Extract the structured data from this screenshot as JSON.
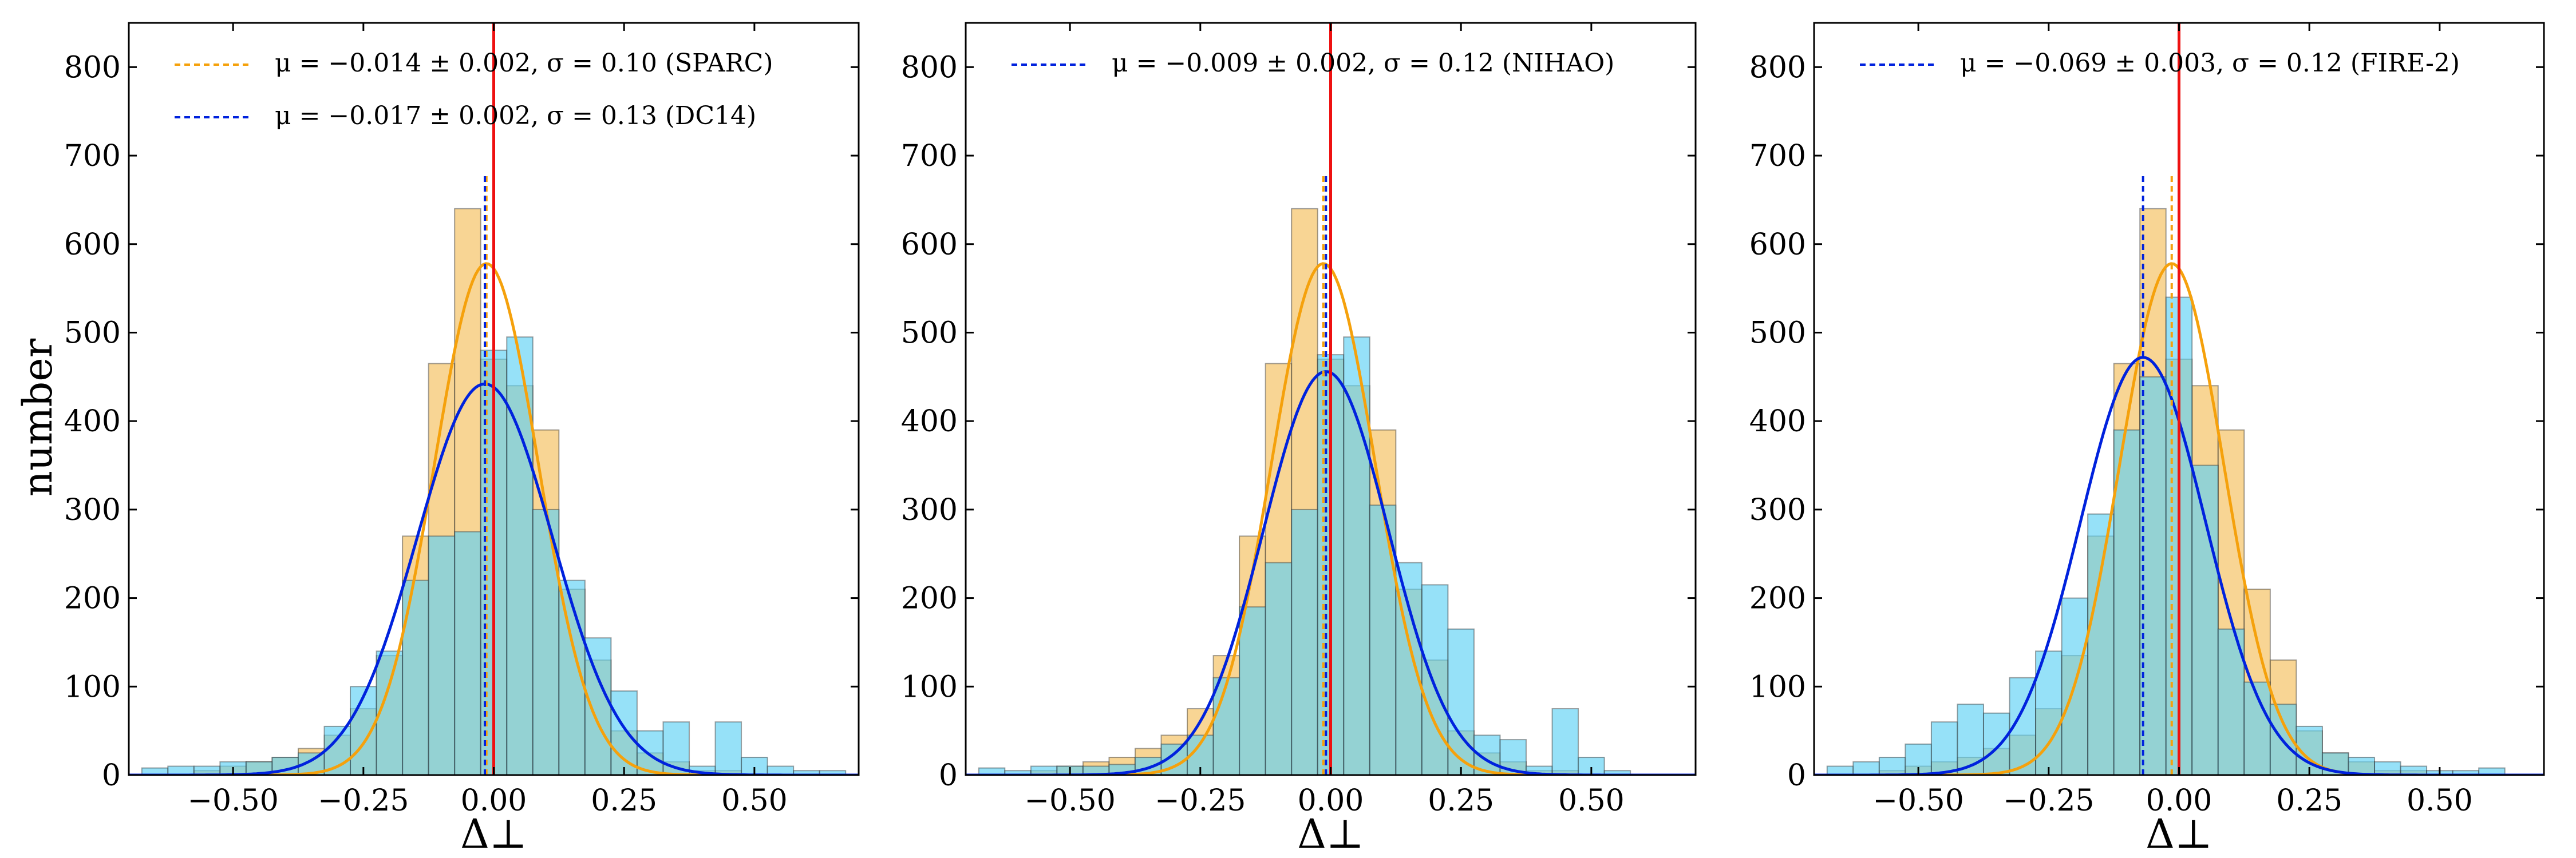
{
  "colors": {
    "sparc_fill": "#f5be5b",
    "sim_fill": "#5ed1f5",
    "overlap_fill": "#8fc7a9",
    "sparc_line": "#f5a10c",
    "sim_line": "#0022dd",
    "zero_line": "#ee1111",
    "edge": "#333333"
  },
  "chart_data": [
    {
      "type": "bar",
      "ylabel": "number",
      "xlabel": "Δ⊥",
      "xlim": [
        -0.7,
        0.7
      ],
      "ylim": [
        0,
        850
      ],
      "xticks": [
        "−0.50",
        "−0.25",
        "0.00",
        "0.25",
        "0.50"
      ],
      "yticks": [
        "0",
        "100",
        "200",
        "300",
        "400",
        "500",
        "600",
        "700",
        "800"
      ],
      "legend": [
        {
          "text": "μ = −0.014 ± 0.002, σ = 0.10 (SPARC)",
          "color": "#f5a10c"
        },
        {
          "text": "μ = −0.017 ± 0.002, σ = 0.13 (DC14)",
          "color": "#0022dd"
        }
      ],
      "bin_edges": [
        -0.675,
        -0.625,
        -0.575,
        -0.525,
        -0.475,
        -0.425,
        -0.375,
        -0.325,
        -0.275,
        -0.225,
        -0.175,
        -0.125,
        -0.075,
        -0.025,
        0.025,
        0.075,
        0.125,
        0.175,
        0.225,
        0.275,
        0.325,
        0.375,
        0.425,
        0.475,
        0.525,
        0.575,
        0.625,
        0.675
      ],
      "sparc_counts": [
        0,
        0,
        5,
        10,
        15,
        20,
        30,
        45,
        75,
        135,
        270,
        465,
        640,
        470,
        440,
        390,
        210,
        130,
        50,
        25,
        15,
        5,
        5,
        0,
        0,
        0,
        0
      ],
      "sim_counts": [
        8,
        10,
        10,
        15,
        15,
        20,
        25,
        55,
        100,
        140,
        220,
        270,
        275,
        480,
        495,
        300,
        220,
        155,
        95,
        50,
        60,
        10,
        60,
        20,
        10,
        5,
        5
      ],
      "sparc_fit": {
        "mu": -0.014,
        "sigma": 0.1,
        "peak": 578
      },
      "sim_fit": {
        "mu": -0.017,
        "sigma": 0.13,
        "peak": 442
      },
      "sim_mean_line": -0.017
    },
    {
      "type": "bar",
      "xlabel": "Δ⊥",
      "xlim": [
        -0.7,
        0.7
      ],
      "ylim": [
        0,
        850
      ],
      "xticks": [
        "−0.50",
        "−0.25",
        "0.00",
        "0.25",
        "0.50"
      ],
      "yticks": [
        "0",
        "100",
        "200",
        "300",
        "400",
        "500",
        "600",
        "700",
        "800"
      ],
      "legend": [
        {
          "text": "μ = −0.009 ± 0.002, σ = 0.12 (NIHAO)",
          "color": "#0022dd"
        }
      ],
      "bin_edges": [
        -0.675,
        -0.625,
        -0.575,
        -0.525,
        -0.475,
        -0.425,
        -0.375,
        -0.325,
        -0.275,
        -0.225,
        -0.175,
        -0.125,
        -0.075,
        -0.025,
        0.025,
        0.075,
        0.125,
        0.175,
        0.225,
        0.275,
        0.325,
        0.375,
        0.425,
        0.475,
        0.525,
        0.575,
        0.625,
        0.675
      ],
      "sparc_counts": [
        0,
        0,
        5,
        10,
        15,
        20,
        30,
        45,
        75,
        135,
        270,
        465,
        640,
        470,
        440,
        390,
        210,
        130,
        50,
        25,
        15,
        5,
        5,
        0,
        0,
        0,
        0
      ],
      "sim_counts": [
        8,
        5,
        10,
        10,
        10,
        12,
        20,
        35,
        45,
        110,
        190,
        240,
        300,
        475,
        495,
        305,
        240,
        215,
        165,
        45,
        40,
        10,
        75,
        20,
        5,
        0,
        0
      ],
      "sparc_fit": {
        "mu": -0.014,
        "sigma": 0.1,
        "peak": 578
      },
      "sim_fit": {
        "mu": -0.009,
        "sigma": 0.12,
        "peak": 456
      },
      "sim_mean_line": -0.009
    },
    {
      "type": "bar",
      "xlabel": "Δ⊥",
      "xlim": [
        -0.7,
        0.7
      ],
      "ylim": [
        0,
        850
      ],
      "xticks": [
        "−0.50",
        "−0.25",
        "0.00",
        "0.25",
        "0.50"
      ],
      "yticks": [
        "0",
        "100",
        "200",
        "300",
        "400",
        "500",
        "600",
        "700",
        "800"
      ],
      "legend": [
        {
          "text": "μ = −0.069 ± 0.003, σ = 0.12 (FIRE-2)",
          "color": "#0022dd"
        }
      ],
      "bin_edges": [
        -0.675,
        -0.625,
        -0.575,
        -0.525,
        -0.475,
        -0.425,
        -0.375,
        -0.325,
        -0.275,
        -0.225,
        -0.175,
        -0.125,
        -0.075,
        -0.025,
        0.025,
        0.075,
        0.125,
        0.175,
        0.225,
        0.275,
        0.325,
        0.375,
        0.425,
        0.475,
        0.525,
        0.575,
        0.625,
        0.675
      ],
      "sparc_counts": [
        0,
        0,
        5,
        10,
        15,
        20,
        30,
        45,
        75,
        135,
        270,
        465,
        640,
        470,
        440,
        390,
        210,
        130,
        50,
        25,
        15,
        5,
        5,
        0,
        0,
        0,
        0
      ],
      "sim_counts": [
        10,
        15,
        20,
        35,
        60,
        80,
        70,
        110,
        140,
        200,
        295,
        390,
        450,
        540,
        350,
        165,
        105,
        80,
        55,
        25,
        20,
        15,
        10,
        5,
        5,
        8,
        0
      ],
      "sparc_fit": {
        "mu": -0.014,
        "sigma": 0.1,
        "peak": 578
      },
      "sim_fit": {
        "mu": -0.069,
        "sigma": 0.12,
        "peak": 472
      },
      "sim_mean_line": -0.069
    }
  ]
}
